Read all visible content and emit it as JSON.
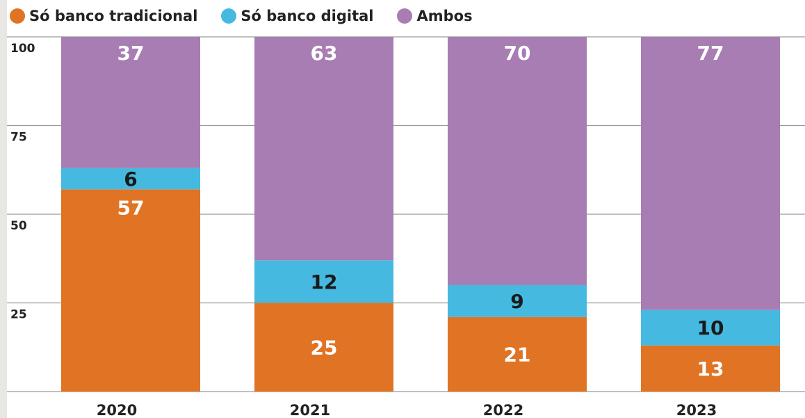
{
  "chart_data": {
    "type": "bar",
    "stacked": true,
    "categories": [
      "2020",
      "2021",
      "2022",
      "2023"
    ],
    "series": [
      {
        "name": "Só banco tradicional",
        "values": [
          57,
          25,
          21,
          13
        ],
        "color": "#e07424",
        "label_color": "#ffffff"
      },
      {
        "name": "Só banco digital",
        "values": [
          6,
          12,
          9,
          10
        ],
        "color": "#46b9e1",
        "label_color": "#1a1a1a"
      },
      {
        "name": "Ambos",
        "values": [
          37,
          63,
          70,
          77
        ],
        "color": "#a77db3",
        "label_color": "#ffffff"
      }
    ],
    "yticks": [
      "25",
      "50",
      "75",
      "100"
    ],
    "ylim": [
      0,
      100
    ],
    "grid": true,
    "legend_position": "top-left",
    "xlabel": "",
    "ylabel": "",
    "title": ""
  }
}
